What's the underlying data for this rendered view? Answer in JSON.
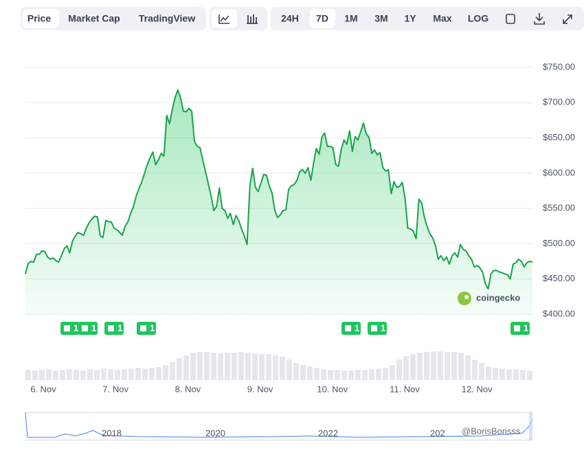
{
  "toolbar": {
    "views": [
      "Price",
      "Market Cap",
      "TradingView"
    ],
    "active_view": "Price",
    "ranges": [
      "24H",
      "7D",
      "1M",
      "3M",
      "1Y",
      "Max",
      "LOG"
    ],
    "active_range": "7D"
  },
  "chart_data": {
    "type": "line",
    "x_labels": [
      "6. Nov",
      "7. Nov",
      "8. Nov",
      "9. Nov",
      "10. Nov",
      "11. Nov",
      "12. Nov"
    ],
    "ylim": [
      400,
      750
    ],
    "yticks": [
      {
        "value": 400,
        "label": "$400.00"
      },
      {
        "value": 450,
        "label": "$450.00"
      },
      {
        "value": 500,
        "label": "$500.00"
      },
      {
        "value": 550,
        "label": "$550.00"
      },
      {
        "value": 600,
        "label": "$600.00"
      },
      {
        "value": 650,
        "label": "$650.00"
      },
      {
        "value": 700,
        "label": "$700.00"
      },
      {
        "value": 750,
        "label": "$750.00"
      }
    ],
    "grid": true,
    "series": [
      {
        "name": "Price",
        "color": "#16a34a",
        "values": [
          457,
          472,
          475,
          474,
          485,
          485,
          490,
          489,
          481,
          478,
          480,
          476,
          474,
          483,
          493,
          497,
          487,
          504,
          511,
          516,
          514,
          512,
          522,
          530,
          535,
          539,
          538,
          511,
          509,
          533,
          531,
          531,
          522,
          520,
          516,
          512,
          525,
          531,
          543,
          553,
          568,
          578,
          588,
          600,
          612,
          622,
          630,
          612,
          619,
          628,
          624,
          682,
          670,
          690,
          707,
          718,
          707,
          688,
          687,
          692,
          688,
          645,
          638,
          636,
          619,
          602,
          585,
          568,
          547,
          553,
          579,
          550,
          547,
          536,
          543,
          527,
          540,
          533,
          521,
          511,
          499,
          582,
          607,
          580,
          574,
          586,
          598,
          597,
          582,
          572,
          547,
          537,
          541,
          547,
          548,
          577,
          582,
          584,
          590,
          602,
          605,
          600,
          608,
          590,
          614,
          635,
          627,
          651,
          657,
          638,
          638,
          636,
          612,
          610,
          634,
          647,
          641,
          660,
          631,
          652,
          647,
          659,
          671,
          656,
          651,
          628,
          633,
          626,
          629,
          608,
          603,
          605,
          571,
          588,
          580,
          581,
          587,
          565,
          522,
          521,
          518,
          507,
          563,
          558,
          537,
          524,
          514,
          508,
          497,
          478,
          483,
          476,
          481,
          471,
          483,
          487,
          481,
          499,
          492,
          490,
          483,
          478,
          467,
          469,
          466,
          460,
          443,
          436,
          457,
          462,
          462,
          460,
          459,
          457,
          456,
          450,
          471,
          473,
          478,
          475,
          467,
          473,
          475,
          474
        ]
      }
    ],
    "volume": [
      15,
      14,
      15,
      16,
      14,
      15,
      16,
      15,
      14,
      16,
      15,
      17,
      16,
      15,
      16,
      17,
      18,
      17,
      18,
      19,
      22,
      26,
      32,
      36,
      40,
      41,
      41,
      40,
      39,
      40,
      40,
      41,
      40,
      39,
      38,
      38,
      36,
      34,
      30,
      25,
      22,
      20,
      18,
      16,
      15,
      15,
      14,
      14,
      15,
      15,
      16,
      17,
      18,
      22,
      30,
      35,
      38,
      40,
      41,
      42,
      42,
      41,
      41,
      40,
      36,
      30,
      25,
      20,
      18,
      17,
      16,
      16,
      15,
      14
    ],
    "news_markers": [
      1,
      1,
      1,
      1,
      1,
      1,
      1
    ],
    "navigator_labels": [
      "2018",
      "2020",
      "2022",
      "202"
    ],
    "watermark": "coingecko",
    "credit": "@BorisBorisss"
  }
}
